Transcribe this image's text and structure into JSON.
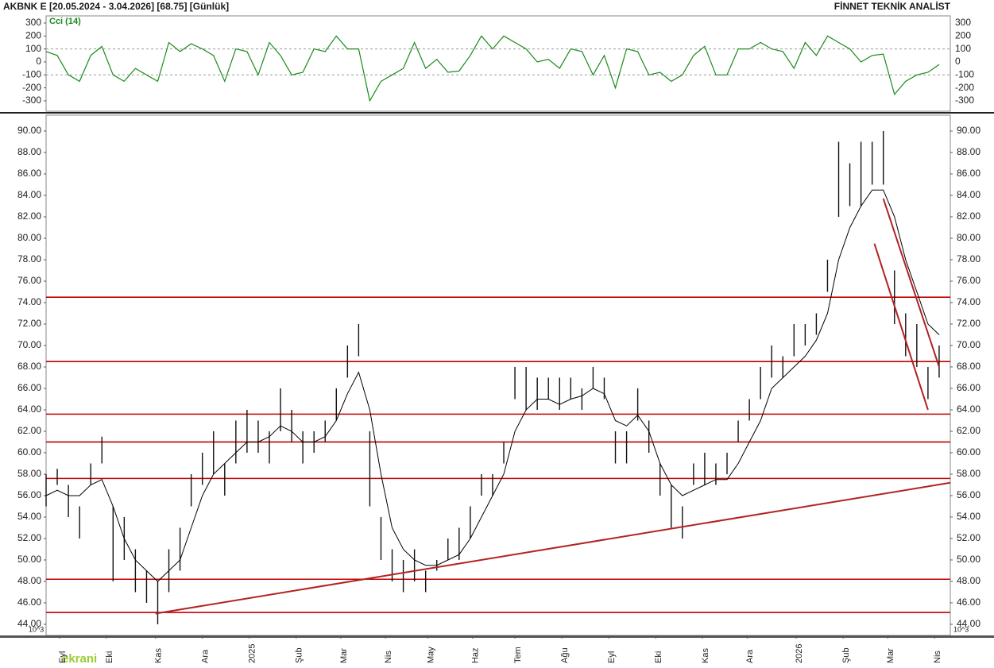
{
  "header": {
    "left": "AKBNK E  [20.05.2024 - 3.04.2026]  [68.75]  [Günlük]",
    "right": "FİNNET TEKNİK ANALİST"
  },
  "logo": "ekrani",
  "chart_data": [
    {
      "type": "line",
      "title": "Cci (14)",
      "x": [
        0,
        5,
        10,
        15,
        20,
        25,
        30,
        35,
        40,
        45,
        50,
        55,
        60,
        65,
        70,
        75,
        80,
        85,
        90,
        95,
        100,
        105,
        110,
        115,
        120,
        125,
        130,
        135,
        140,
        145,
        150,
        155,
        160,
        165,
        170,
        175,
        180,
        185,
        190,
        195,
        200,
        205,
        210,
        215,
        220,
        225,
        230,
        235,
        240,
        245,
        250,
        255,
        260,
        265,
        270,
        275,
        280,
        285,
        290,
        295,
        300,
        305,
        310,
        315,
        320,
        325,
        330,
        335,
        340,
        345,
        350,
        355,
        360,
        365,
        370,
        375,
        380,
        385,
        390,
        395,
        400
      ],
      "xlim": [
        0,
        405
      ],
      "series": [
        {
          "color": "#1a8a1a",
          "values": [
            80,
            50,
            -100,
            -150,
            50,
            120,
            -100,
            -150,
            -50,
            -100,
            -150,
            150,
            80,
            140,
            100,
            50,
            -150,
            100,
            80,
            -100,
            150,
            50,
            -100,
            -80,
            100,
            80,
            200,
            100,
            100,
            -300,
            -150,
            -100,
            -50,
            150,
            -50,
            20,
            -80,
            -70,
            50,
            200,
            100,
            200,
            150,
            100,
            0,
            20,
            -50,
            100,
            80,
            -100,
            50,
            -200,
            100,
            80,
            -100,
            -80,
            -150,
            -100,
            50,
            120,
            -100,
            -100,
            100,
            100,
            150,
            100,
            80,
            -50,
            150,
            50,
            200,
            150,
            100,
            0,
            50,
            60,
            -250,
            -150,
            -100,
            -80,
            -20
          ]
        }
      ],
      "ylim": [
        -380,
        355
      ],
      "yticks": [
        300,
        200,
        100,
        0,
        -100,
        -200,
        -300
      ],
      "reference_lines": [
        100,
        -100
      ]
    },
    {
      "type": "ohlc",
      "x": [
        0,
        5,
        10,
        15,
        20,
        25,
        30,
        35,
        40,
        45,
        50,
        55,
        60,
        65,
        70,
        75,
        80,
        85,
        90,
        95,
        100,
        105,
        110,
        115,
        120,
        125,
        130,
        135,
        140,
        145,
        150,
        155,
        160,
        165,
        170,
        175,
        180,
        185,
        190,
        195,
        200,
        205,
        210,
        215,
        220,
        225,
        230,
        235,
        240,
        245,
        250,
        255,
        260,
        265,
        270,
        275,
        280,
        285,
        290,
        295,
        300,
        305,
        310,
        315,
        320,
        325,
        330,
        335,
        340,
        345,
        350,
        355,
        360,
        365,
        370,
        375,
        380,
        385,
        390,
        395,
        400
      ],
      "high": [
        58,
        58.5,
        57,
        55,
        59,
        61.5,
        55,
        54,
        51,
        49,
        48,
        51,
        53,
        58,
        60,
        62,
        59,
        63,
        64,
        63,
        62,
        66,
        64,
        62,
        62,
        63,
        66,
        70,
        72,
        62,
        54,
        51,
        50,
        51,
        49,
        50,
        52,
        53,
        55,
        58,
        58,
        61,
        68,
        68,
        67,
        67,
        67,
        67,
        66,
        68,
        67,
        62,
        62,
        66,
        63,
        59,
        57,
        55,
        59,
        60,
        59,
        60,
        63,
        65,
        68,
        70,
        69,
        72,
        72,
        73,
        78,
        89,
        87,
        89,
        89,
        90,
        77,
        73,
        72,
        68,
        70
      ],
      "low": [
        55,
        57,
        54,
        52,
        57,
        59,
        48,
        50,
        47,
        46,
        44,
        47,
        49,
        55,
        57,
        58,
        56,
        59,
        60,
        60,
        59,
        62,
        61,
        59,
        60,
        61,
        63,
        67,
        69,
        55,
        50,
        48,
        47,
        48,
        47,
        49,
        50,
        50,
        52,
        56,
        56,
        59,
        65,
        64,
        64,
        65,
        64,
        65,
        64,
        66,
        65,
        59,
        59,
        63,
        60,
        56,
        53,
        52,
        57,
        57,
        57,
        58,
        61,
        63,
        65,
        67,
        67,
        69,
        70,
        71,
        75,
        82,
        83,
        83,
        85,
        85,
        72,
        69,
        68,
        65,
        67
      ],
      "bar_color": "#111111",
      "series": [
        {
          "color": "#000000",
          "values": [
            56,
            56.5,
            56,
            56,
            57,
            57.5,
            55,
            52,
            50,
            49,
            48,
            49,
            50,
            53,
            56,
            58,
            59,
            60,
            61,
            61,
            61.5,
            62.5,
            62,
            61,
            61,
            61.5,
            63,
            65.5,
            67.5,
            64,
            58,
            53,
            51,
            50,
            49.5,
            49.5,
            50,
            50.5,
            52,
            54,
            56,
            58,
            62,
            64,
            65,
            65,
            64.5,
            65,
            65.3,
            66,
            65.5,
            63,
            62.5,
            63.5,
            62,
            59,
            57,
            56,
            56.5,
            57,
            57.5,
            57.5,
            59,
            61,
            63,
            66,
            67,
            68,
            69,
            70.5,
            73,
            78,
            81,
            83,
            84.5,
            84.5,
            82,
            78,
            75,
            72,
            71
          ]
        }
      ],
      "levels": {
        "color": "#c00000",
        "values": [
          74.5,
          68.5,
          63.6,
          61,
          57.6,
          48.2,
          45.1
        ]
      },
      "trendlines": {
        "color": "#b22222",
        "lines": [
          {
            "x": [
              49,
              405
            ],
            "y": [
              45,
              57.2
            ]
          },
          {
            "x": [
              371,
              395
            ],
            "y": [
              79.5,
              64
            ]
          },
          {
            "x": [
              375,
              400
            ],
            "y": [
              83.7,
              68
            ]
          }
        ]
      },
      "xlim": [
        0,
        405
      ],
      "xticks": [
        {
          "value": 6,
          "label": "Eyl"
        },
        {
          "value": 27,
          "label": "Eki"
        },
        {
          "value": 49,
          "label": "Kas"
        },
        {
          "value": 70,
          "label": "Ara"
        },
        {
          "value": 91,
          "label": "2025"
        },
        {
          "value": 112,
          "label": "Şub"
        },
        {
          "value": 132,
          "label": "Mar"
        },
        {
          "value": 152,
          "label": "Nis"
        },
        {
          "value": 171,
          "label": "May"
        },
        {
          "value": 191,
          "label": "Haz"
        },
        {
          "value": 210,
          "label": "Tem"
        },
        {
          "value": 231,
          "label": "Ağu"
        },
        {
          "value": 252,
          "label": "Eyl"
        },
        {
          "value": 273,
          "label": "Eki"
        },
        {
          "value": 294,
          "label": "Kas"
        },
        {
          "value": 314,
          "label": "Ara"
        },
        {
          "value": 336,
          "label": "2026"
        },
        {
          "value": 357,
          "label": "Şub"
        },
        {
          "value": 377,
          "label": "Mar"
        },
        {
          "value": 398,
          "label": "Nis"
        }
      ],
      "ylim": [
        42.96,
        91.48
      ],
      "yticks": [
        {
          "value": 44,
          "label": "44.00"
        },
        {
          "value": 46,
          "label": "46.00"
        },
        {
          "value": 48,
          "label": "48.00"
        },
        {
          "value": 50,
          "label": "50.00"
        },
        {
          "value": 52,
          "label": "52.00"
        },
        {
          "value": 54,
          "label": "54.00"
        },
        {
          "value": 56,
          "label": "56.00"
        },
        {
          "value": 58,
          "label": "58.00"
        },
        {
          "value": 60,
          "label": "60.00"
        },
        {
          "value": 62,
          "label": "62.00"
        },
        {
          "value": 64,
          "label": "64.00"
        },
        {
          "value": 66,
          "label": "66.00"
        },
        {
          "value": 68,
          "label": "68.00"
        },
        {
          "value": 70,
          "label": "70.00"
        },
        {
          "value": 72,
          "label": "72.00"
        },
        {
          "value": 74,
          "label": "74.00"
        },
        {
          "value": 76,
          "label": "76.00"
        },
        {
          "value": 78,
          "label": "78.00"
        },
        {
          "value": 80,
          "label": "80.00"
        },
        {
          "value": 82,
          "label": "82.00"
        },
        {
          "value": 84,
          "label": "84.00"
        },
        {
          "value": 86,
          "label": "86.00"
        },
        {
          "value": 88,
          "label": "88.00"
        },
        {
          "value": 90,
          "label": "90.00"
        }
      ],
      "scale_note": "10^3"
    }
  ]
}
